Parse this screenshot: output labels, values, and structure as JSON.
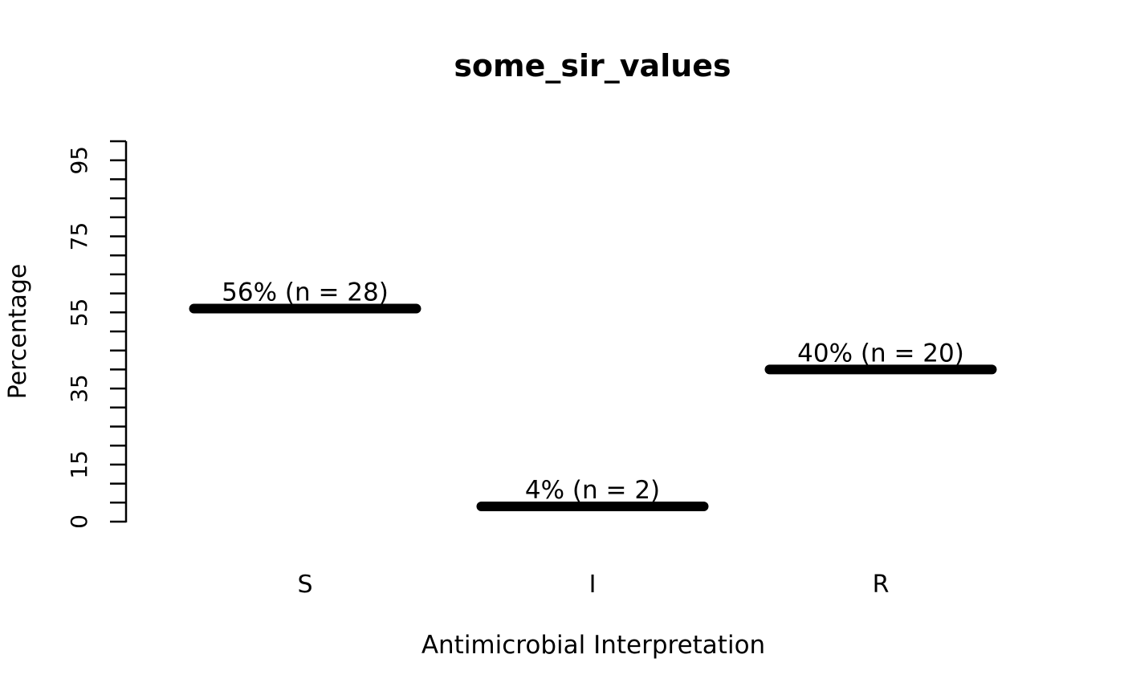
{
  "chart_data": {
    "type": "bar",
    "style": "horizontal-segment-bars",
    "title": "some_sir_values",
    "xlabel": "Antimicrobial Interpretation",
    "ylabel": "Percentage",
    "categories": [
      "S",
      "I",
      "R"
    ],
    "values": [
      56,
      4,
      40
    ],
    "counts": [
      28,
      2,
      20
    ],
    "bar_labels": [
      "56% (n = 28)",
      "4% (n = 2)",
      "40% (n = 20)"
    ],
    "ylim": [
      0,
      100
    ],
    "ytick_step": 5,
    "ytick_labeled_values": [
      0,
      15,
      35,
      55,
      75,
      95
    ],
    "grid": false,
    "legend": "none",
    "bar_color": "#000000",
    "axis_color": "#000000",
    "text_color": "#000000",
    "background_color": "#ffffff"
  }
}
